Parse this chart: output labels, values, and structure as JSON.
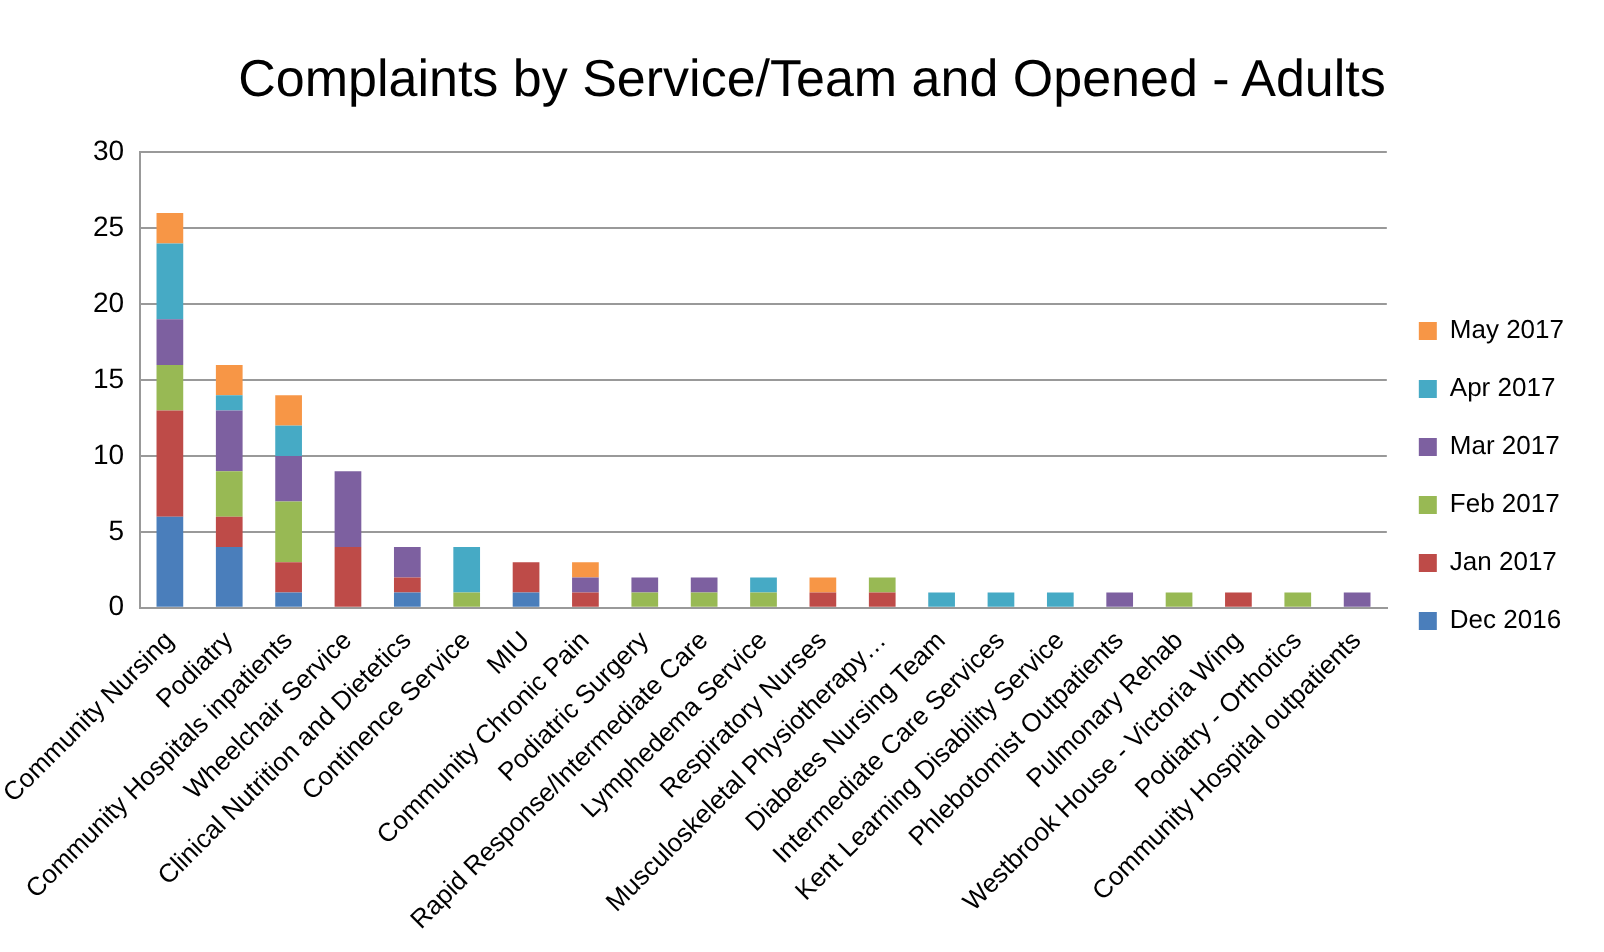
{
  "chart_data": {
    "type": "bar",
    "title": "Complaints by Service/Team and Opened - Adults",
    "stacked": true,
    "categories": [
      "Community Nursing",
      "Podiatry",
      "Community Hospitals inpatients",
      "Wheelchair Service",
      "Clinical Nutrition and Dietetics",
      "Continence Service",
      "MIU",
      "Community Chronic Pain",
      "Podiatric Surgery",
      "Rapid Response/Intermediate Care",
      "Lymphedema Service",
      "Respiratory Nurses",
      "Musculoskeletal Physiotherapy…",
      "Diabetes Nursing Team",
      "Intermediate Care Services",
      "Kent Learning Disability Service",
      "Phlebotomist Outpatients",
      "Pulmonary Rehab",
      "Westbrook House - Victoria Wing",
      "Podiatry - Orthotics",
      "Community Hospital outpatients"
    ],
    "series": [
      {
        "name": "Dec 2016",
        "color": "#4a7ebb",
        "values": [
          6,
          4,
          1,
          0,
          1,
          0,
          1,
          0,
          0,
          0,
          0,
          0,
          0,
          0,
          0,
          0,
          0,
          0,
          0,
          0,
          0
        ]
      },
      {
        "name": "Jan 2017",
        "color": "#be4b48",
        "values": [
          7,
          2,
          2,
          4,
          1,
          0,
          2,
          1,
          0,
          0,
          0,
          1,
          1,
          0,
          0,
          0,
          0,
          0,
          1,
          0,
          0
        ]
      },
      {
        "name": "Feb 2017",
        "color": "#98b954",
        "values": [
          3,
          3,
          4,
          0,
          0,
          1,
          0,
          0,
          1,
          1,
          1,
          0,
          1,
          0,
          0,
          0,
          0,
          1,
          0,
          1,
          0
        ]
      },
      {
        "name": "Mar 2017",
        "color": "#7d60a0",
        "values": [
          3,
          4,
          3,
          5,
          2,
          0,
          0,
          1,
          1,
          1,
          0,
          0,
          0,
          0,
          0,
          0,
          1,
          0,
          0,
          0,
          1
        ]
      },
      {
        "name": "Apr 2017",
        "color": "#46aac5",
        "values": [
          5,
          1,
          2,
          0,
          0,
          3,
          0,
          0,
          0,
          0,
          1,
          0,
          0,
          1,
          1,
          1,
          0,
          0,
          0,
          0,
          0
        ]
      },
      {
        "name": "May 2017",
        "color": "#f79646",
        "values": [
          2,
          2,
          2,
          0,
          0,
          0,
          0,
          1,
          0,
          0,
          0,
          1,
          0,
          0,
          0,
          0,
          0,
          0,
          0,
          0,
          0
        ]
      }
    ],
    "ylim": [
      0,
      30
    ],
    "yticks": [
      0,
      5,
      10,
      15,
      20,
      25,
      30
    ],
    "grid": "y",
    "legend": "right"
  }
}
